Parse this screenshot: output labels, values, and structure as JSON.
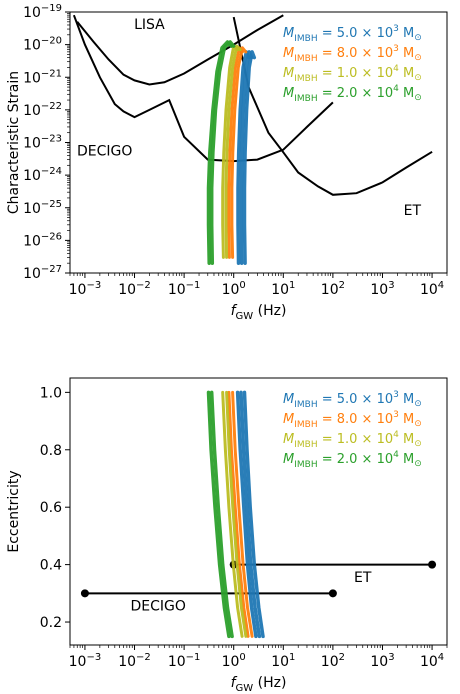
{
  "chart_data": [
    {
      "type": "line",
      "xlabel": "f_GW (Hz)",
      "ylabel": "Characteristic Strain",
      "x_scale": "log",
      "y_scale": "log",
      "xlim": [
        0.0005,
        20000
      ],
      "ylim": [
        1e-27,
        1e-19
      ],
      "xticks": [
        {
          "value": 0.001,
          "base": "10",
          "exp": "−3"
        },
        {
          "value": 0.01,
          "base": "10",
          "exp": "−2"
        },
        {
          "value": 0.1,
          "base": "10",
          "exp": "−1"
        },
        {
          "value": 1,
          "base": "10",
          "exp": "0"
        },
        {
          "value": 10,
          "base": "10",
          "exp": "1"
        },
        {
          "value": 100,
          "base": "10",
          "exp": "2"
        },
        {
          "value": 1000,
          "base": "10",
          "exp": "3"
        },
        {
          "value": 10000,
          "base": "10",
          "exp": "4"
        }
      ],
      "yticks": [
        {
          "value": 1e-27,
          "base": "10",
          "exp": "−27"
        },
        {
          "value": 1e-26,
          "base": "10",
          "exp": "−26"
        },
        {
          "value": 1e-25,
          "base": "10",
          "exp": "−25"
        },
        {
          "value": 1e-24,
          "base": "10",
          "exp": "−24"
        },
        {
          "value": 1e-23,
          "base": "10",
          "exp": "−23"
        },
        {
          "value": 1e-22,
          "base": "10",
          "exp": "−22"
        },
        {
          "value": 1e-21,
          "base": "10",
          "exp": "−21"
        },
        {
          "value": 1e-20,
          "base": "10",
          "exp": "−20"
        },
        {
          "value": 1e-19,
          "base": "10",
          "exp": "−19"
        }
      ],
      "sensitivity_curves": [
        {
          "name": "LISA",
          "x": [
            0.0007,
            0.0015,
            0.003,
            0.006,
            0.01,
            0.02,
            0.04,
            0.1,
            0.3,
            1,
            3,
            10
          ],
          "y": [
            5e-20,
            1.2e-20,
            3.5e-21,
            1.2e-21,
            8e-22,
            6e-22,
            7e-22,
            1.3e-21,
            3.5e-21,
            1e-20,
            2.8e-20,
            8e-20
          ]
        },
        {
          "name": "DECIGO",
          "x": [
            0.0006,
            0.001,
            0.002,
            0.004,
            0.006,
            0.01,
            0.02,
            0.05,
            0.1,
            0.3,
            1,
            3,
            10,
            30,
            100
          ],
          "y": [
            8e-20,
            1e-20,
            1e-21,
            1.5e-22,
            9e-23,
            6e-23,
            1e-22,
            2e-22,
            1.5e-23,
            3e-24,
            2.7e-24,
            3e-24,
            6e-24,
            3e-23,
            1.7e-22
          ]
        },
        {
          "name": "ET",
          "x": [
            1,
            2,
            5,
            10,
            20,
            50,
            100,
            300,
            1000,
            3000,
            10000
          ],
          "y": [
            7e-20,
            5e-22,
            2e-23,
            5e-24,
            1.2e-24,
            4.5e-25,
            2.5e-25,
            2.8e-25,
            6e-25,
            1.7e-24,
            5.2e-24
          ]
        }
      ],
      "annotations": [
        {
          "text": "LISA",
          "x": 0.02,
          "y": 3e-20
        },
        {
          "text": "DECIGO",
          "x": 0.0025,
          "y": 4e-24
        },
        {
          "text": "ET",
          "x": 4000,
          "y": 6e-26
        }
      ],
      "series": [
        {
          "name": "M_IMBH = 5.0 × 10^3 M⊙",
          "color": "#1f77b4",
          "width": 3.5,
          "tracks": [
            {
              "x": [
                1.25,
                1.22,
                1.22,
                1.26,
                1.35,
                1.55,
                1.8,
                2.0
              ],
              "y": [
                2e-27,
                3e-26,
                4e-25,
                5e-24,
                1e-22,
                2e-21,
                6e-21,
                4e-21
              ]
            },
            {
              "x": [
                1.45,
                1.42,
                1.42,
                1.46,
                1.56,
                1.78,
                2.05,
                2.3
              ],
              "y": [
                2e-27,
                3e-26,
                4e-25,
                5e-24,
                1e-22,
                2e-21,
                6e-21,
                4e-21
              ]
            },
            {
              "x": [
                1.7,
                1.65,
                1.65,
                1.7,
                1.82,
                2.05,
                2.35,
                2.6
              ],
              "y": [
                2e-27,
                3e-26,
                4e-25,
                5e-24,
                1e-22,
                2e-21,
                6e-21,
                4e-21
              ]
            }
          ]
        },
        {
          "name": "M_IMBH = 8.0 × 10^3 M⊙",
          "color": "#ff7f0e",
          "width": 3,
          "tracks": [
            {
              "x": [
                0.82,
                0.8,
                0.8,
                0.84,
                0.92,
                1.08,
                1.3,
                1.5
              ],
              "y": [
                3e-27,
                3e-26,
                4e-25,
                5e-24,
                1e-22,
                2e-21,
                8e-21,
                6e-21
              ]
            },
            {
              "x": [
                0.95,
                0.92,
                0.92,
                0.96,
                1.05,
                1.24,
                1.5,
                1.75
              ],
              "y": [
                3e-27,
                3e-26,
                4e-25,
                5e-24,
                1e-22,
                2e-21,
                8e-21,
                6e-21
              ]
            }
          ]
        },
        {
          "name": "M_IMBH = 1.0 × 10^4 M⊙",
          "color": "#bcbd22",
          "width": 3,
          "tracks": [
            {
              "x": [
                0.62,
                0.6,
                0.6,
                0.63,
                0.7,
                0.83,
                1.0,
                1.2
              ],
              "y": [
                3e-27,
                3e-26,
                4e-25,
                5e-24,
                1e-22,
                2e-21,
                9e-21,
                7e-21
              ]
            },
            {
              "x": [
                0.72,
                0.7,
                0.7,
                0.73,
                0.8,
                0.95,
                1.15,
                1.35
              ],
              "y": [
                3e-27,
                3e-26,
                4e-25,
                5e-24,
                1e-22,
                2e-21,
                9e-21,
                7e-21
              ]
            }
          ]
        },
        {
          "name": "M_IMBH = 2.0 × 10^4 M⊙",
          "color": "#2ca02c",
          "width": 3.5,
          "tracks": [
            {
              "x": [
                0.32,
                0.31,
                0.31,
                0.33,
                0.38,
                0.46,
                0.58,
                0.75,
                0.9
              ],
              "y": [
                2e-27,
                3e-26,
                4e-25,
                5e-24,
                1e-22,
                1.5e-21,
                8e-21,
                1.2e-20,
                9e-21
              ]
            },
            {
              "x": [
                0.37,
                0.36,
                0.36,
                0.38,
                0.43,
                0.52,
                0.65,
                0.85,
                1.0
              ],
              "y": [
                2e-27,
                3e-26,
                4e-25,
                5e-24,
                1e-22,
                1.5e-21,
                8e-21,
                1.2e-20,
                9e-21
              ]
            }
          ]
        }
      ],
      "legend": "top-right"
    },
    {
      "type": "line",
      "xlabel": "f_GW (Hz)",
      "ylabel": "Eccentricity",
      "x_scale": "log",
      "y_scale": "linear",
      "xlim": [
        0.0005,
        20000
      ],
      "ylim": [
        0.12,
        1.05
      ],
      "xticks": [
        {
          "value": 0.001,
          "base": "10",
          "exp": "−3"
        },
        {
          "value": 0.01,
          "base": "10",
          "exp": "−2"
        },
        {
          "value": 0.1,
          "base": "10",
          "exp": "−1"
        },
        {
          "value": 1,
          "base": "10",
          "exp": "0"
        },
        {
          "value": 10,
          "base": "10",
          "exp": "1"
        },
        {
          "value": 100,
          "base": "10",
          "exp": "2"
        },
        {
          "value": 1000,
          "base": "10",
          "exp": "3"
        },
        {
          "value": 10000,
          "base": "10",
          "exp": "4"
        }
      ],
      "yticks": [
        {
          "value": 0.2,
          "label": "0.2"
        },
        {
          "value": 0.4,
          "label": "0.4"
        },
        {
          "value": 0.6,
          "label": "0.6"
        },
        {
          "value": 0.8,
          "label": "0.8"
        },
        {
          "value": 1.0,
          "label": "1.0"
        }
      ],
      "bands": [
        {
          "name": "DECIGO",
          "x": [
            0.001,
            100
          ],
          "y": 0.3
        },
        {
          "name": "ET",
          "x": [
            1,
            10000
          ],
          "y": 0.4
        }
      ],
      "annotations": [
        {
          "text": "DECIGO",
          "x": 0.03,
          "y": 0.24
        },
        {
          "text": "ET",
          "x": 400,
          "y": 0.34
        }
      ],
      "series": [
        {
          "name": "M_IMBH = 5.0 × 10^3 M⊙",
          "color": "#1f77b4",
          "width": 3.5,
          "tracks": [
            {
              "x": [
                1.2,
                1.35,
                1.6,
                1.9,
                2.3,
                2.8
              ],
              "y": [
                1.0,
                0.8,
                0.6,
                0.4,
                0.25,
                0.15
              ]
            },
            {
              "x": [
                1.4,
                1.58,
                1.85,
                2.2,
                2.7,
                3.3
              ],
              "y": [
                1.0,
                0.8,
                0.6,
                0.4,
                0.25,
                0.15
              ]
            },
            {
              "x": [
                1.65,
                1.85,
                2.15,
                2.6,
                3.2,
                3.9
              ],
              "y": [
                1.0,
                0.8,
                0.6,
                0.4,
                0.25,
                0.15
              ]
            }
          ]
        },
        {
          "name": "M_IMBH = 8.0 × 10^3 M⊙",
          "color": "#ff7f0e",
          "width": 3,
          "tracks": [
            {
              "x": [
                0.8,
                0.9,
                1.07,
                1.3,
                1.6,
                1.95
              ],
              "y": [
                1.0,
                0.8,
                0.6,
                0.4,
                0.25,
                0.15
              ]
            },
            {
              "x": [
                0.95,
                1.07,
                1.27,
                1.55,
                1.9,
                2.35
              ],
              "y": [
                1.0,
                0.8,
                0.6,
                0.4,
                0.25,
                0.15
              ]
            }
          ]
        },
        {
          "name": "M_IMBH = 1.0 × 10^4 M⊙",
          "color": "#bcbd22",
          "width": 3,
          "tracks": [
            {
              "x": [
                0.6,
                0.68,
                0.8,
                0.98,
                1.2,
                1.48
              ],
              "y": [
                1.0,
                0.8,
                0.6,
                0.4,
                0.25,
                0.15
              ]
            },
            {
              "x": [
                0.72,
                0.81,
                0.96,
                1.17,
                1.43,
                1.76
              ],
              "y": [
                1.0,
                0.8,
                0.6,
                0.4,
                0.25,
                0.15
              ]
            }
          ]
        },
        {
          "name": "M_IMBH = 2.0 × 10^4 M⊙",
          "color": "#2ca02c",
          "width": 3.5,
          "tracks": [
            {
              "x": [
                0.31,
                0.35,
                0.42,
                0.52,
                0.65,
                0.8
              ],
              "y": [
                1.0,
                0.8,
                0.6,
                0.4,
                0.25,
                0.15
              ]
            },
            {
              "x": [
                0.36,
                0.41,
                0.49,
                0.6,
                0.75,
                0.93
              ],
              "y": [
                1.0,
                0.8,
                0.6,
                0.4,
                0.25,
                0.15
              ]
            }
          ]
        }
      ],
      "legend": "top-right"
    }
  ],
  "legend_entries": [
    {
      "mass_coef": "5.0",
      "mass_exp": "3",
      "color": "#1f77b4"
    },
    {
      "mass_coef": "8.0",
      "mass_exp": "3",
      "color": "#ff7f0e"
    },
    {
      "mass_coef": "1.0",
      "mass_exp": "4",
      "color": "#bcbd22"
    },
    {
      "mass_coef": "2.0",
      "mass_exp": "4",
      "color": "#2ca02c"
    }
  ],
  "legend_text": {
    "M": "M",
    "sub": "IMBH",
    "eq": " = ",
    "times": " × 10",
    "unit": " M",
    "sun": "⊙"
  },
  "axis_text": {
    "f": "f",
    "f_sub": "GW",
    "f_unit": " (Hz)"
  }
}
